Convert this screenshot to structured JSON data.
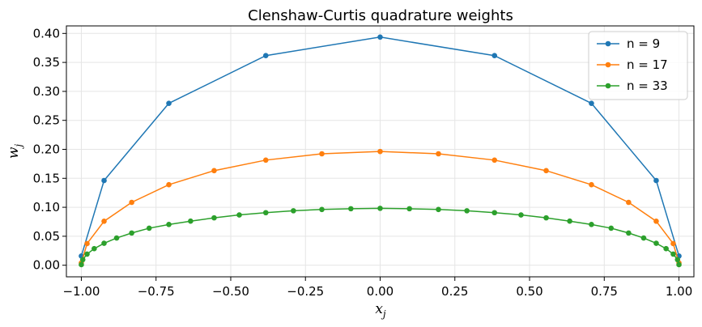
{
  "chart_data": {
    "type": "line",
    "title": "Clenshaw-Curtis quadrature weights",
    "xlabel": "x",
    "xlabel_sub": "j",
    "ylabel": "w",
    "ylabel_sub": "j",
    "xlim": [
      -1.05,
      1.05
    ],
    "ylim": [
      -0.02,
      0.413
    ],
    "xticks": [
      -1.0,
      -0.75,
      -0.5,
      -0.25,
      0.0,
      0.25,
      0.5,
      0.75,
      1.0
    ],
    "xtick_labels": [
      "−1.00",
      "−0.75",
      "−0.50",
      "−0.25",
      "0.00",
      "0.25",
      "0.50",
      "0.75",
      "1.00"
    ],
    "yticks": [
      0.0,
      0.05,
      0.1,
      0.15,
      0.2,
      0.25,
      0.3,
      0.35,
      0.4
    ],
    "ytick_labels": [
      "0.00",
      "0.05",
      "0.10",
      "0.15",
      "0.20",
      "0.25",
      "0.30",
      "0.35",
      "0.40"
    ],
    "grid": true,
    "legend_position": "top-right",
    "series": [
      {
        "name": "n = 9",
        "color": "#1f77b4",
        "x": [
          -1.0,
          -0.9239,
          -0.7071,
          -0.3827,
          0.0,
          0.3827,
          0.7071,
          0.9239,
          1.0
        ],
        "y": [
          0.0159,
          0.1462,
          0.2794,
          0.3617,
          0.3937,
          0.3617,
          0.2794,
          0.1462,
          0.0159
        ]
      },
      {
        "name": "n = 17",
        "color": "#ff7f0e",
        "x": [
          -1.0,
          -0.9808,
          -0.9239,
          -0.8315,
          -0.7071,
          -0.5556,
          -0.3827,
          -0.1951,
          0.0,
          0.1951,
          0.3827,
          0.5556,
          0.7071,
          0.8315,
          0.9239,
          0.9808,
          1.0
        ],
        "y": [
          0.0039,
          0.0373,
          0.0759,
          0.1085,
          0.139,
          0.1632,
          0.1814,
          0.1923,
          0.1963,
          0.1923,
          0.1814,
          0.1632,
          0.139,
          0.1085,
          0.0759,
          0.0373,
          0.0039
        ]
      },
      {
        "name": "n = 33",
        "color": "#2ca02c",
        "x": [
          -1.0,
          -0.9952,
          -0.9808,
          -0.9569,
          -0.9239,
          -0.8819,
          -0.8315,
          -0.773,
          -0.7071,
          -0.6344,
          -0.5556,
          -0.4714,
          -0.3827,
          -0.2903,
          -0.1951,
          -0.098,
          0.0,
          0.098,
          0.1951,
          0.2903,
          0.3827,
          0.4714,
          0.5556,
          0.6344,
          0.7071,
          0.773,
          0.8315,
          0.8819,
          0.9239,
          0.9569,
          0.9808,
          0.9952,
          1.0
        ],
        "y": [
          0.001,
          0.0096,
          0.0192,
          0.0286,
          0.0379,
          0.0469,
          0.0556,
          0.0639,
          0.0703,
          0.0761,
          0.0818,
          0.0868,
          0.0907,
          0.094,
          0.0962,
          0.0975,
          0.0982,
          0.0975,
          0.0962,
          0.094,
          0.0907,
          0.0868,
          0.0818,
          0.0761,
          0.0703,
          0.0639,
          0.0556,
          0.0469,
          0.0379,
          0.0286,
          0.0192,
          0.0096,
          0.001
        ]
      }
    ]
  }
}
